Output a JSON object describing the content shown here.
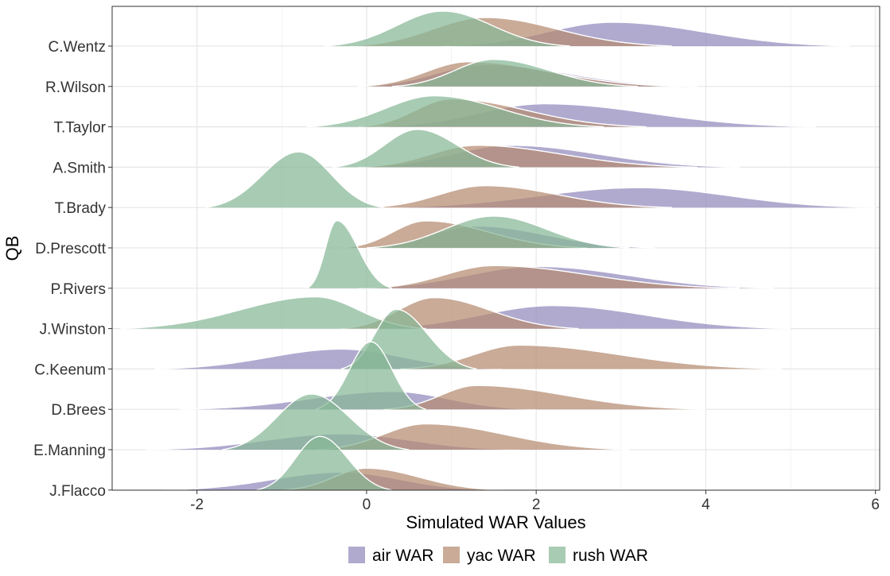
{
  "chart_data": {
    "type": "ridgeline",
    "xlabel": "Simulated WAR Values",
    "ylabel": "QB",
    "xlim": [
      -3.0,
      6.05
    ],
    "x_ticks": [
      -2,
      0,
      2,
      4,
      6
    ],
    "x_tick_labels": [
      "-2",
      "0",
      "2",
      "4",
      "6"
    ],
    "grid": true,
    "legend_position": "bottom",
    "categories": [
      "C.Wentz",
      "R.Wilson",
      "T.Taylor",
      "A.Smith",
      "T.Brady",
      "D.Prescott",
      "P.Rivers",
      "J.Winston",
      "C.Keenum",
      "D.Brees",
      "E.Manning",
      "J.Flacco"
    ],
    "series": [
      {
        "name": "air WAR",
        "color": "#9189BD",
        "distributions": [
          {
            "qb": "C.Wentz",
            "min": 0.9,
            "peak": 2.9,
            "max": 5.7,
            "height": 0.6
          },
          {
            "qb": "R.Wilson",
            "min": -0.1,
            "peak": 1.4,
            "max": 3.9,
            "height": 0.55
          },
          {
            "qb": "T.Taylor",
            "min": 0.1,
            "peak": 2.1,
            "max": 5.3,
            "height": 0.58
          },
          {
            "qb": "A.Smith",
            "min": -0.1,
            "peak": 1.7,
            "max": 4.4,
            "height": 0.55
          },
          {
            "qb": "T.Brady",
            "min": 0.2,
            "peak": 3.2,
            "max": 6.0,
            "height": 0.5
          },
          {
            "qb": "D.Prescott",
            "min": -0.1,
            "peak": 1.3,
            "max": 3.4,
            "height": 0.55
          },
          {
            "qb": "P.Rivers",
            "min": -0.1,
            "peak": 2.0,
            "max": 4.8,
            "height": 0.55
          },
          {
            "qb": "J.Winston",
            "min": 0.0,
            "peak": 2.2,
            "max": 5.0,
            "height": 0.58
          },
          {
            "qb": "C.Keenum",
            "min": -2.5,
            "peak": -0.3,
            "max": 1.6,
            "height": 0.5
          },
          {
            "qb": "D.Brees",
            "min": -2.2,
            "peak": 0.3,
            "max": 2.0,
            "height": 0.45
          },
          {
            "qb": "E.Manning",
            "min": -2.6,
            "peak": -0.3,
            "max": 1.8,
            "height": 0.4
          },
          {
            "qb": "J.Flacco",
            "min": -2.4,
            "peak": -0.3,
            "max": 1.5,
            "height": 0.45
          }
        ]
      },
      {
        "name": "yac WAR",
        "color": "#B48B70",
        "distributions": [
          {
            "qb": "C.Wentz",
            "min": -0.2,
            "peak": 1.4,
            "max": 3.6,
            "height": 0.72
          },
          {
            "qb": "R.Wilson",
            "min": -0.1,
            "peak": 1.2,
            "max": 3.7,
            "height": 0.62
          },
          {
            "qb": "T.Taylor",
            "min": -0.1,
            "peak": 1.0,
            "max": 3.3,
            "height": 0.7
          },
          {
            "qb": "A.Smith",
            "min": -0.1,
            "peak": 1.3,
            "max": 3.9,
            "height": 0.55
          },
          {
            "qb": "T.Brady",
            "min": 0.0,
            "peak": 1.4,
            "max": 3.6,
            "height": 0.55
          },
          {
            "qb": "D.Prescott",
            "min": -0.3,
            "peak": 0.7,
            "max": 2.6,
            "height": 0.68
          },
          {
            "qb": "P.Rivers",
            "min": 0.0,
            "peak": 1.5,
            "max": 4.4,
            "height": 0.57
          },
          {
            "qb": "J.Winston",
            "min": -0.3,
            "peak": 0.8,
            "max": 2.5,
            "height": 0.78
          },
          {
            "qb": "C.Keenum",
            "min": 0.4,
            "peak": 1.8,
            "max": 4.9,
            "height": 0.6
          },
          {
            "qb": "D.Brees",
            "min": 0.2,
            "peak": 1.3,
            "max": 4.0,
            "height": 0.6
          },
          {
            "qb": "E.Manning",
            "min": -0.6,
            "peak": 0.7,
            "max": 3.1,
            "height": 0.65
          },
          {
            "qb": "J.Flacco",
            "min": -1.0,
            "peak": 0.0,
            "max": 1.6,
            "height": 0.55
          }
        ]
      },
      {
        "name": "rush WAR",
        "color": "#87B796",
        "distributions": [
          {
            "qb": "C.Wentz",
            "min": -0.5,
            "peak": 0.9,
            "max": 2.4,
            "height": 0.88
          },
          {
            "qb": "R.Wilson",
            "min": 0.3,
            "peak": 1.5,
            "max": 3.2,
            "height": 0.68
          },
          {
            "qb": "T.Taylor",
            "min": -0.7,
            "peak": 0.8,
            "max": 2.8,
            "height": 0.78
          },
          {
            "qb": "A.Smith",
            "min": -0.4,
            "peak": 0.6,
            "max": 1.8,
            "height": 0.95
          },
          {
            "qb": "T.Brady",
            "min": -1.9,
            "peak": -0.8,
            "max": 0.2,
            "height": 1.4
          },
          {
            "qb": "D.Prescott",
            "min": 0.0,
            "peak": 1.5,
            "max": 3.1,
            "height": 0.8
          },
          {
            "qb": "P.Rivers",
            "min": -0.7,
            "peak": -0.35,
            "max": 0.3,
            "height": 1.7
          },
          {
            "qb": "J.Winston",
            "min": -2.9,
            "peak": -0.6,
            "max": 0.7,
            "height": 0.8
          },
          {
            "qb": "C.Keenum",
            "min": -0.3,
            "peak": 0.35,
            "max": 1.3,
            "height": 1.5
          },
          {
            "qb": "D.Brees",
            "min": -0.6,
            "peak": 0.05,
            "max": 0.7,
            "height": 1.7
          },
          {
            "qb": "E.Manning",
            "min": -1.7,
            "peak": -0.65,
            "max": 0.5,
            "height": 1.4
          },
          {
            "qb": "J.Flacco",
            "min": -1.3,
            "peak": -0.55,
            "max": 0.3,
            "height": 1.35
          }
        ]
      }
    ]
  }
}
